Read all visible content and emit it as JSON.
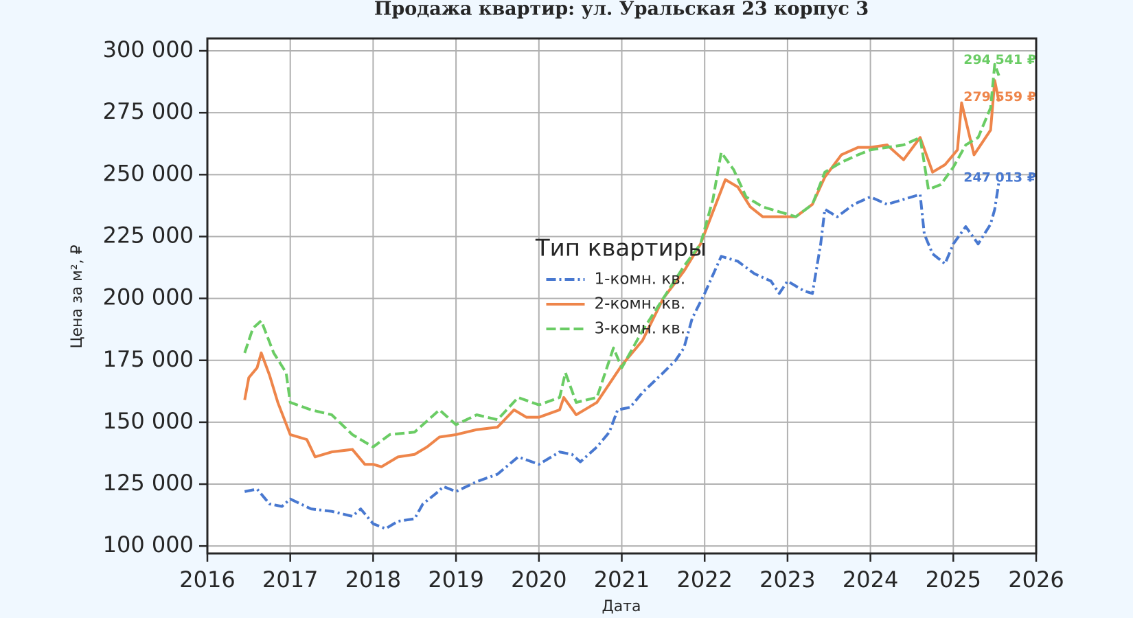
{
  "chart_data": {
    "type": "line",
    "title": "Продажа квартир: ул. Уральская 23 корпус 3",
    "x_label": "Дата",
    "y_label": "Цена за м², ₽",
    "legend_title": "Тип квартиры",
    "legend_position": "center",
    "grid": true,
    "xlim": [
      2016,
      2026
    ],
    "xticks": [
      2016,
      2017,
      2018,
      2019,
      2020,
      2021,
      2022,
      2023,
      2024,
      2025,
      2026
    ],
    "ylim": [
      97000,
      305000
    ],
    "yticks": [
      {
        "value": 100000,
        "label": "100 000"
      },
      {
        "value": 125000,
        "label": "125 000"
      },
      {
        "value": 150000,
        "label": "150 000"
      },
      {
        "value": 175000,
        "label": "175 000"
      },
      {
        "value": 200000,
        "label": "200 000"
      },
      {
        "value": 225000,
        "label": "225 000"
      },
      {
        "value": 250000,
        "label": "250 000"
      },
      {
        "value": 275000,
        "label": "275 000"
      },
      {
        "value": 300000,
        "label": "300 000"
      }
    ],
    "series": [
      {
        "name": "1-комн. кв.",
        "color": "#4878d0",
        "linestyle": "dashdot",
        "x": [
          2016.45,
          2016.6,
          2016.75,
          2016.9,
          2017.0,
          2017.25,
          2017.5,
          2017.75,
          2017.85,
          2018.0,
          2018.15,
          2018.3,
          2018.5,
          2018.6,
          2018.75,
          2018.85,
          2019.0,
          2019.25,
          2019.5,
          2019.75,
          2020.0,
          2020.25,
          2020.4,
          2020.5,
          2020.7,
          2020.85,
          2020.95,
          2021.1,
          2021.25,
          2021.5,
          2021.65,
          2021.75,
          2021.85,
          2022.0,
          2022.2,
          2022.4,
          2022.6,
          2022.8,
          2022.9,
          2023.0,
          2023.2,
          2023.3,
          2023.4,
          2023.45,
          2023.6,
          2023.8,
          2024.0,
          2024.2,
          2024.5,
          2024.6,
          2024.65,
          2024.75,
          2024.9,
          2025.0,
          2025.15,
          2025.3,
          2025.45,
          2025.5,
          2025.55
        ],
        "values": [
          122000,
          123000,
          117000,
          116000,
          119000,
          115000,
          114000,
          112000,
          115000,
          109000,
          107000,
          110000,
          111000,
          117000,
          121000,
          124000,
          122000,
          126000,
          129000,
          136000,
          133000,
          138000,
          137000,
          134000,
          140000,
          146000,
          155000,
          156000,
          162000,
          170000,
          175000,
          180000,
          192000,
          202000,
          217000,
          215000,
          210000,
          207000,
          202000,
          207000,
          203000,
          202000,
          222000,
          236000,
          233000,
          238000,
          241000,
          238000,
          241000,
          242000,
          226000,
          218000,
          214000,
          222000,
          229000,
          222000,
          230000,
          236000,
          247013
        ]
      },
      {
        "name": "2-комн. кв.",
        "color": "#ee854a",
        "linestyle": "solid",
        "x": [
          2016.45,
          2016.5,
          2016.6,
          2016.65,
          2016.75,
          2016.85,
          2017.0,
          2017.2,
          2017.3,
          2017.5,
          2017.75,
          2017.9,
          2018.0,
          2018.1,
          2018.3,
          2018.5,
          2018.65,
          2018.8,
          2019.0,
          2019.25,
          2019.5,
          2019.7,
          2019.85,
          2020.0,
          2020.25,
          2020.3,
          2020.45,
          2020.7,
          2020.9,
          2021.0,
          2021.25,
          2021.5,
          2021.75,
          2021.95,
          2022.1,
          2022.25,
          2022.4,
          2022.55,
          2022.7,
          2022.9,
          2023.1,
          2023.3,
          2023.45,
          2023.65,
          2023.85,
          2024.0,
          2024.2,
          2024.4,
          2024.6,
          2024.75,
          2024.9,
          2025.05,
          2025.1,
          2025.25,
          2025.45,
          2025.5,
          2025.55
        ],
        "values": [
          159000,
          168000,
          172000,
          178000,
          169000,
          158000,
          145000,
          143000,
          136000,
          138000,
          139000,
          133000,
          133000,
          132000,
          136000,
          137000,
          140000,
          144000,
          145000,
          147000,
          148000,
          155000,
          152000,
          152000,
          155000,
          160000,
          153000,
          158000,
          168000,
          173000,
          183000,
          200000,
          211000,
          222000,
          235000,
          248000,
          245000,
          237000,
          233000,
          233000,
          233000,
          238000,
          249000,
          258000,
          261000,
          261000,
          262000,
          256000,
          265000,
          251000,
          254000,
          260000,
          279000,
          258000,
          268000,
          288000,
          279559
        ]
      },
      {
        "name": "3-комн. кв.",
        "color": "#6acc64",
        "linestyle": "dashed",
        "x": [
          2016.45,
          2016.55,
          2016.65,
          2016.8,
          2016.95,
          2017.0,
          2017.25,
          2017.5,
          2017.75,
          2018.0,
          2018.2,
          2018.5,
          2018.8,
          2019.0,
          2019.25,
          2019.5,
          2019.75,
          2020.0,
          2020.25,
          2020.32,
          2020.45,
          2020.7,
          2020.9,
          2021.0,
          2021.25,
          2021.5,
          2021.75,
          2021.95,
          2022.1,
          2022.2,
          2022.35,
          2022.5,
          2022.7,
          2022.9,
          2023.1,
          2023.3,
          2023.45,
          2023.65,
          2023.85,
          2024.0,
          2024.2,
          2024.4,
          2024.6,
          2024.7,
          2024.85,
          2025.0,
          2025.15,
          2025.3,
          2025.45,
          2025.5,
          2025.55
        ],
        "values": [
          178000,
          188000,
          191000,
          178000,
          170000,
          158000,
          155000,
          153000,
          145000,
          140000,
          145000,
          146000,
          155000,
          149000,
          153000,
          151000,
          160000,
          157000,
          160000,
          170000,
          158000,
          160000,
          180000,
          172000,
          187000,
          200000,
          213000,
          222000,
          240000,
          259000,
          252000,
          241000,
          237000,
          235000,
          233000,
          238000,
          251000,
          255000,
          258000,
          260000,
          261000,
          262000,
          265000,
          244000,
          246000,
          253000,
          262000,
          265000,
          277000,
          294541,
          290000
        ]
      }
    ],
    "annotations": [
      {
        "text": "294 541 ₽",
        "value": 294541,
        "color": "#6acc64"
      },
      {
        "text": "279 559 ₽",
        "value": 279559,
        "color": "#ee854a"
      },
      {
        "text": "247 013 ₽",
        "value": 247013,
        "color": "#4878d0"
      }
    ]
  }
}
